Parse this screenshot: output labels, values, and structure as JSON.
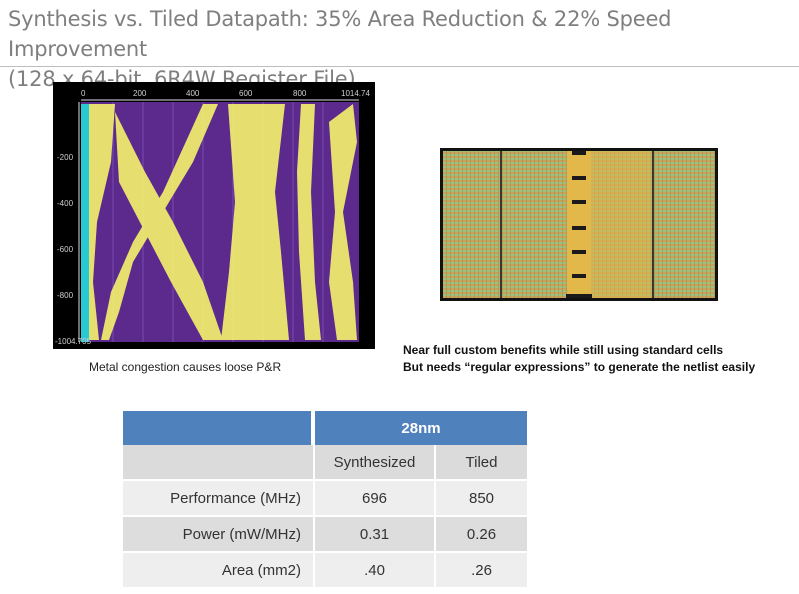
{
  "slide": {
    "title_line1": "Synthesis vs. Tiled Datapath: 35% Area Reduction & 22% Speed Improvement",
    "title_line2": "(128 x 64-bit, 6R4W Register File)"
  },
  "synth_image": {
    "caption": "Metal congestion causes loose P&R",
    "x_ticks": [
      "0",
      "200",
      "400",
      "600",
      "800",
      "1014.74"
    ],
    "y_ticks": [
      "-200",
      "-400",
      "-600",
      "-800",
      "-1004.705"
    ],
    "colors": {
      "background": "#5b2a8c",
      "routing": "#f2ef6e",
      "edge": "#26c9d4"
    }
  },
  "tiled_image": {
    "caption_line1": "Near full custom benefits while still using standard cells",
    "caption_line2": "But needs “regular expressions” to generate the netlist easily"
  },
  "table": {
    "node": "28nm",
    "col_synth": "Synthesized",
    "col_tiled": "Tiled",
    "rows": [
      {
        "label": "Performance (MHz)",
        "synth": "696",
        "tiled": "850"
      },
      {
        "label": "Power (mW/MHz)",
        "synth": "0.31",
        "tiled": "0.26"
      },
      {
        "label": "Area (mm2)",
        "synth": ".40",
        "tiled": ".26"
      }
    ],
    "colors": {
      "header": "#4f81bd"
    }
  }
}
